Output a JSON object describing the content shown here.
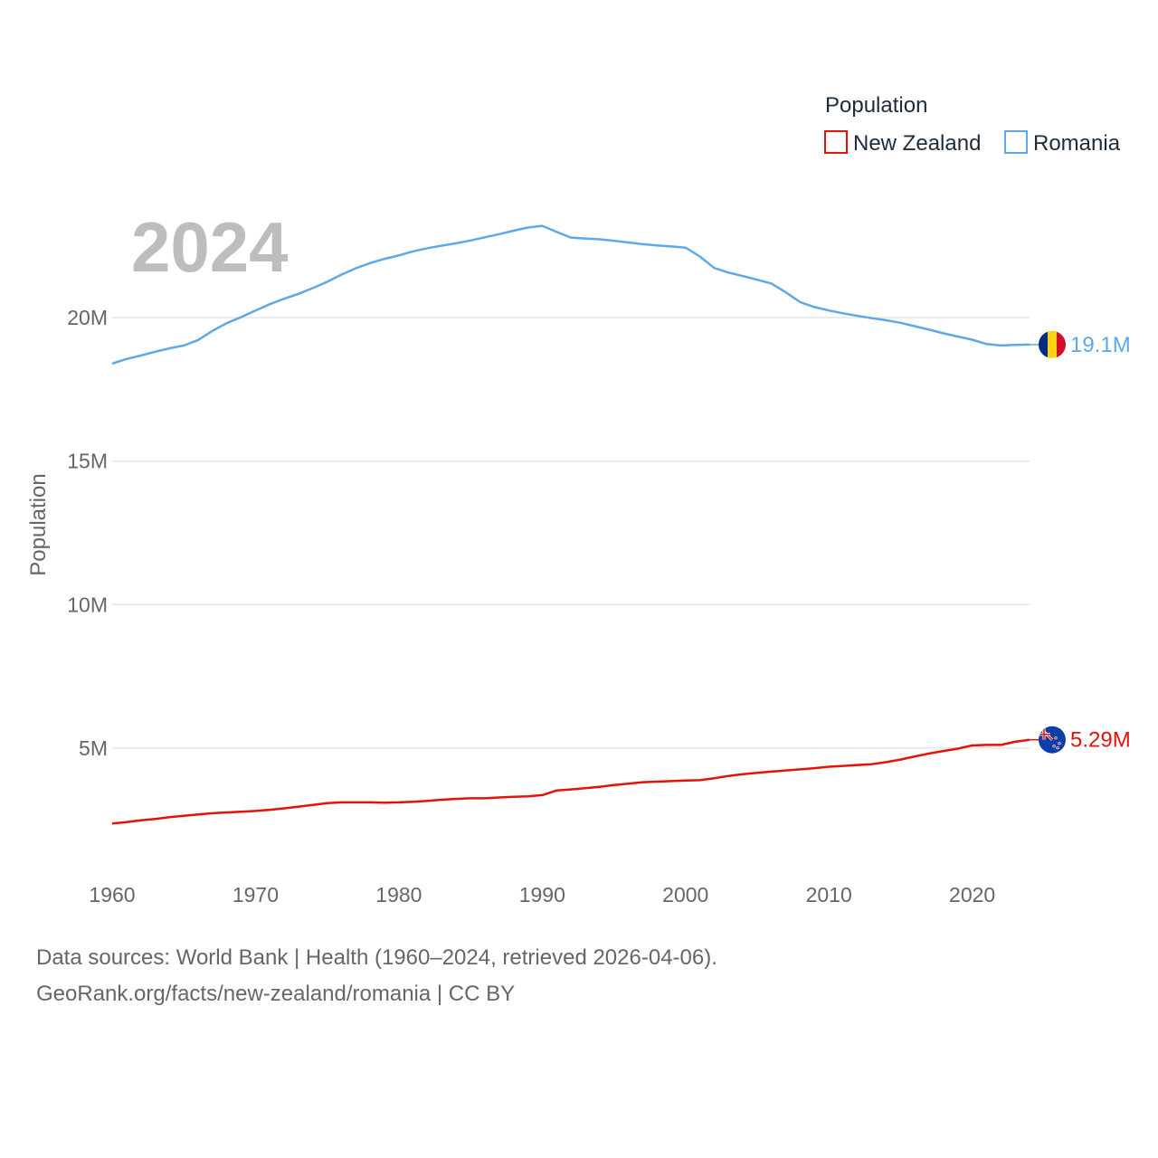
{
  "chart_data": {
    "type": "line",
    "title": "Population",
    "ylabel": "Population",
    "xlabel": "",
    "overlay_year": "2024",
    "xlim": [
      1960,
      2024
    ],
    "ylim": [
      0,
      24000000
    ],
    "x_ticks": [
      1960,
      1970,
      1980,
      1990,
      2000,
      2010,
      2020
    ],
    "y_ticks": [
      {
        "value": 5000000,
        "label": "5M"
      },
      {
        "value": 10000000,
        "label": "10M"
      },
      {
        "value": 15000000,
        "label": "15M"
      },
      {
        "value": 20000000,
        "label": "20M"
      }
    ],
    "grid": true,
    "legend_position": "top-right",
    "x": [
      1960,
      1961,
      1962,
      1963,
      1964,
      1965,
      1966,
      1967,
      1968,
      1969,
      1970,
      1971,
      1972,
      1973,
      1974,
      1975,
      1976,
      1977,
      1978,
      1979,
      1980,
      1981,
      1982,
      1983,
      1984,
      1985,
      1986,
      1987,
      1988,
      1989,
      1990,
      1991,
      1992,
      1993,
      1994,
      1995,
      1996,
      1997,
      1998,
      1999,
      2000,
      2001,
      2002,
      2003,
      2004,
      2005,
      2006,
      2007,
      2008,
      2009,
      2010,
      2011,
      2012,
      2013,
      2014,
      2015,
      2016,
      2017,
      2018,
      2019,
      2020,
      2021,
      2022,
      2023,
      2024
    ],
    "series": [
      {
        "name": "New Zealand",
        "color": "#e3120b",
        "flag": "new-zealand-flag-icon",
        "end_label": "5.29M",
        "values": [
          2370000,
          2420000,
          2480000,
          2530000,
          2590000,
          2640000,
          2690000,
          2730000,
          2760000,
          2780000,
          2810000,
          2850000,
          2900000,
          2960000,
          3020000,
          3080000,
          3110000,
          3110000,
          3110000,
          3100000,
          3110000,
          3130000,
          3160000,
          3200000,
          3230000,
          3250000,
          3250000,
          3280000,
          3300000,
          3320000,
          3360000,
          3520000,
          3560000,
          3600000,
          3650000,
          3710000,
          3760000,
          3810000,
          3830000,
          3850000,
          3870000,
          3880000,
          3950000,
          4030000,
          4090000,
          4140000,
          4180000,
          4220000,
          4260000,
          4300000,
          4350000,
          4380000,
          4410000,
          4440000,
          4510000,
          4600000,
          4710000,
          4810000,
          4900000,
          4980000,
          5090000,
          5110000,
          5110000,
          5220000,
          5290000
        ]
      },
      {
        "name": "Romania",
        "color": "#5ca8e8",
        "flag": "romania-flag-icon",
        "end_label": "19.1M",
        "values": [
          18400000,
          18560000,
          18680000,
          18810000,
          18930000,
          19030000,
          19220000,
          19540000,
          19810000,
          20020000,
          20250000,
          20470000,
          20660000,
          20830000,
          21030000,
          21250000,
          21500000,
          21720000,
          21900000,
          22050000,
          22170000,
          22310000,
          22420000,
          22510000,
          22590000,
          22690000,
          22800000,
          22910000,
          23030000,
          23140000,
          23200000,
          22990000,
          22790000,
          22760000,
          22730000,
          22680000,
          22620000,
          22560000,
          22520000,
          22480000,
          22440000,
          22130000,
          21730000,
          21570000,
          21450000,
          21320000,
          21190000,
          20880000,
          20540000,
          20370000,
          20250000,
          20150000,
          20060000,
          19980000,
          19910000,
          19820000,
          19700000,
          19580000,
          19450000,
          19340000,
          19230000,
          19080000,
          19030000,
          19050000,
          19060000
        ]
      }
    ]
  },
  "legend": {
    "title": "Population",
    "items": [
      "New Zealand",
      "Romania"
    ]
  },
  "footer": {
    "sources": "Data sources: World Bank | Health (1960–2024, retrieved 2026-04-06).",
    "link": "GeoRank.org/facts/new-zealand/romania | CC BY"
  }
}
